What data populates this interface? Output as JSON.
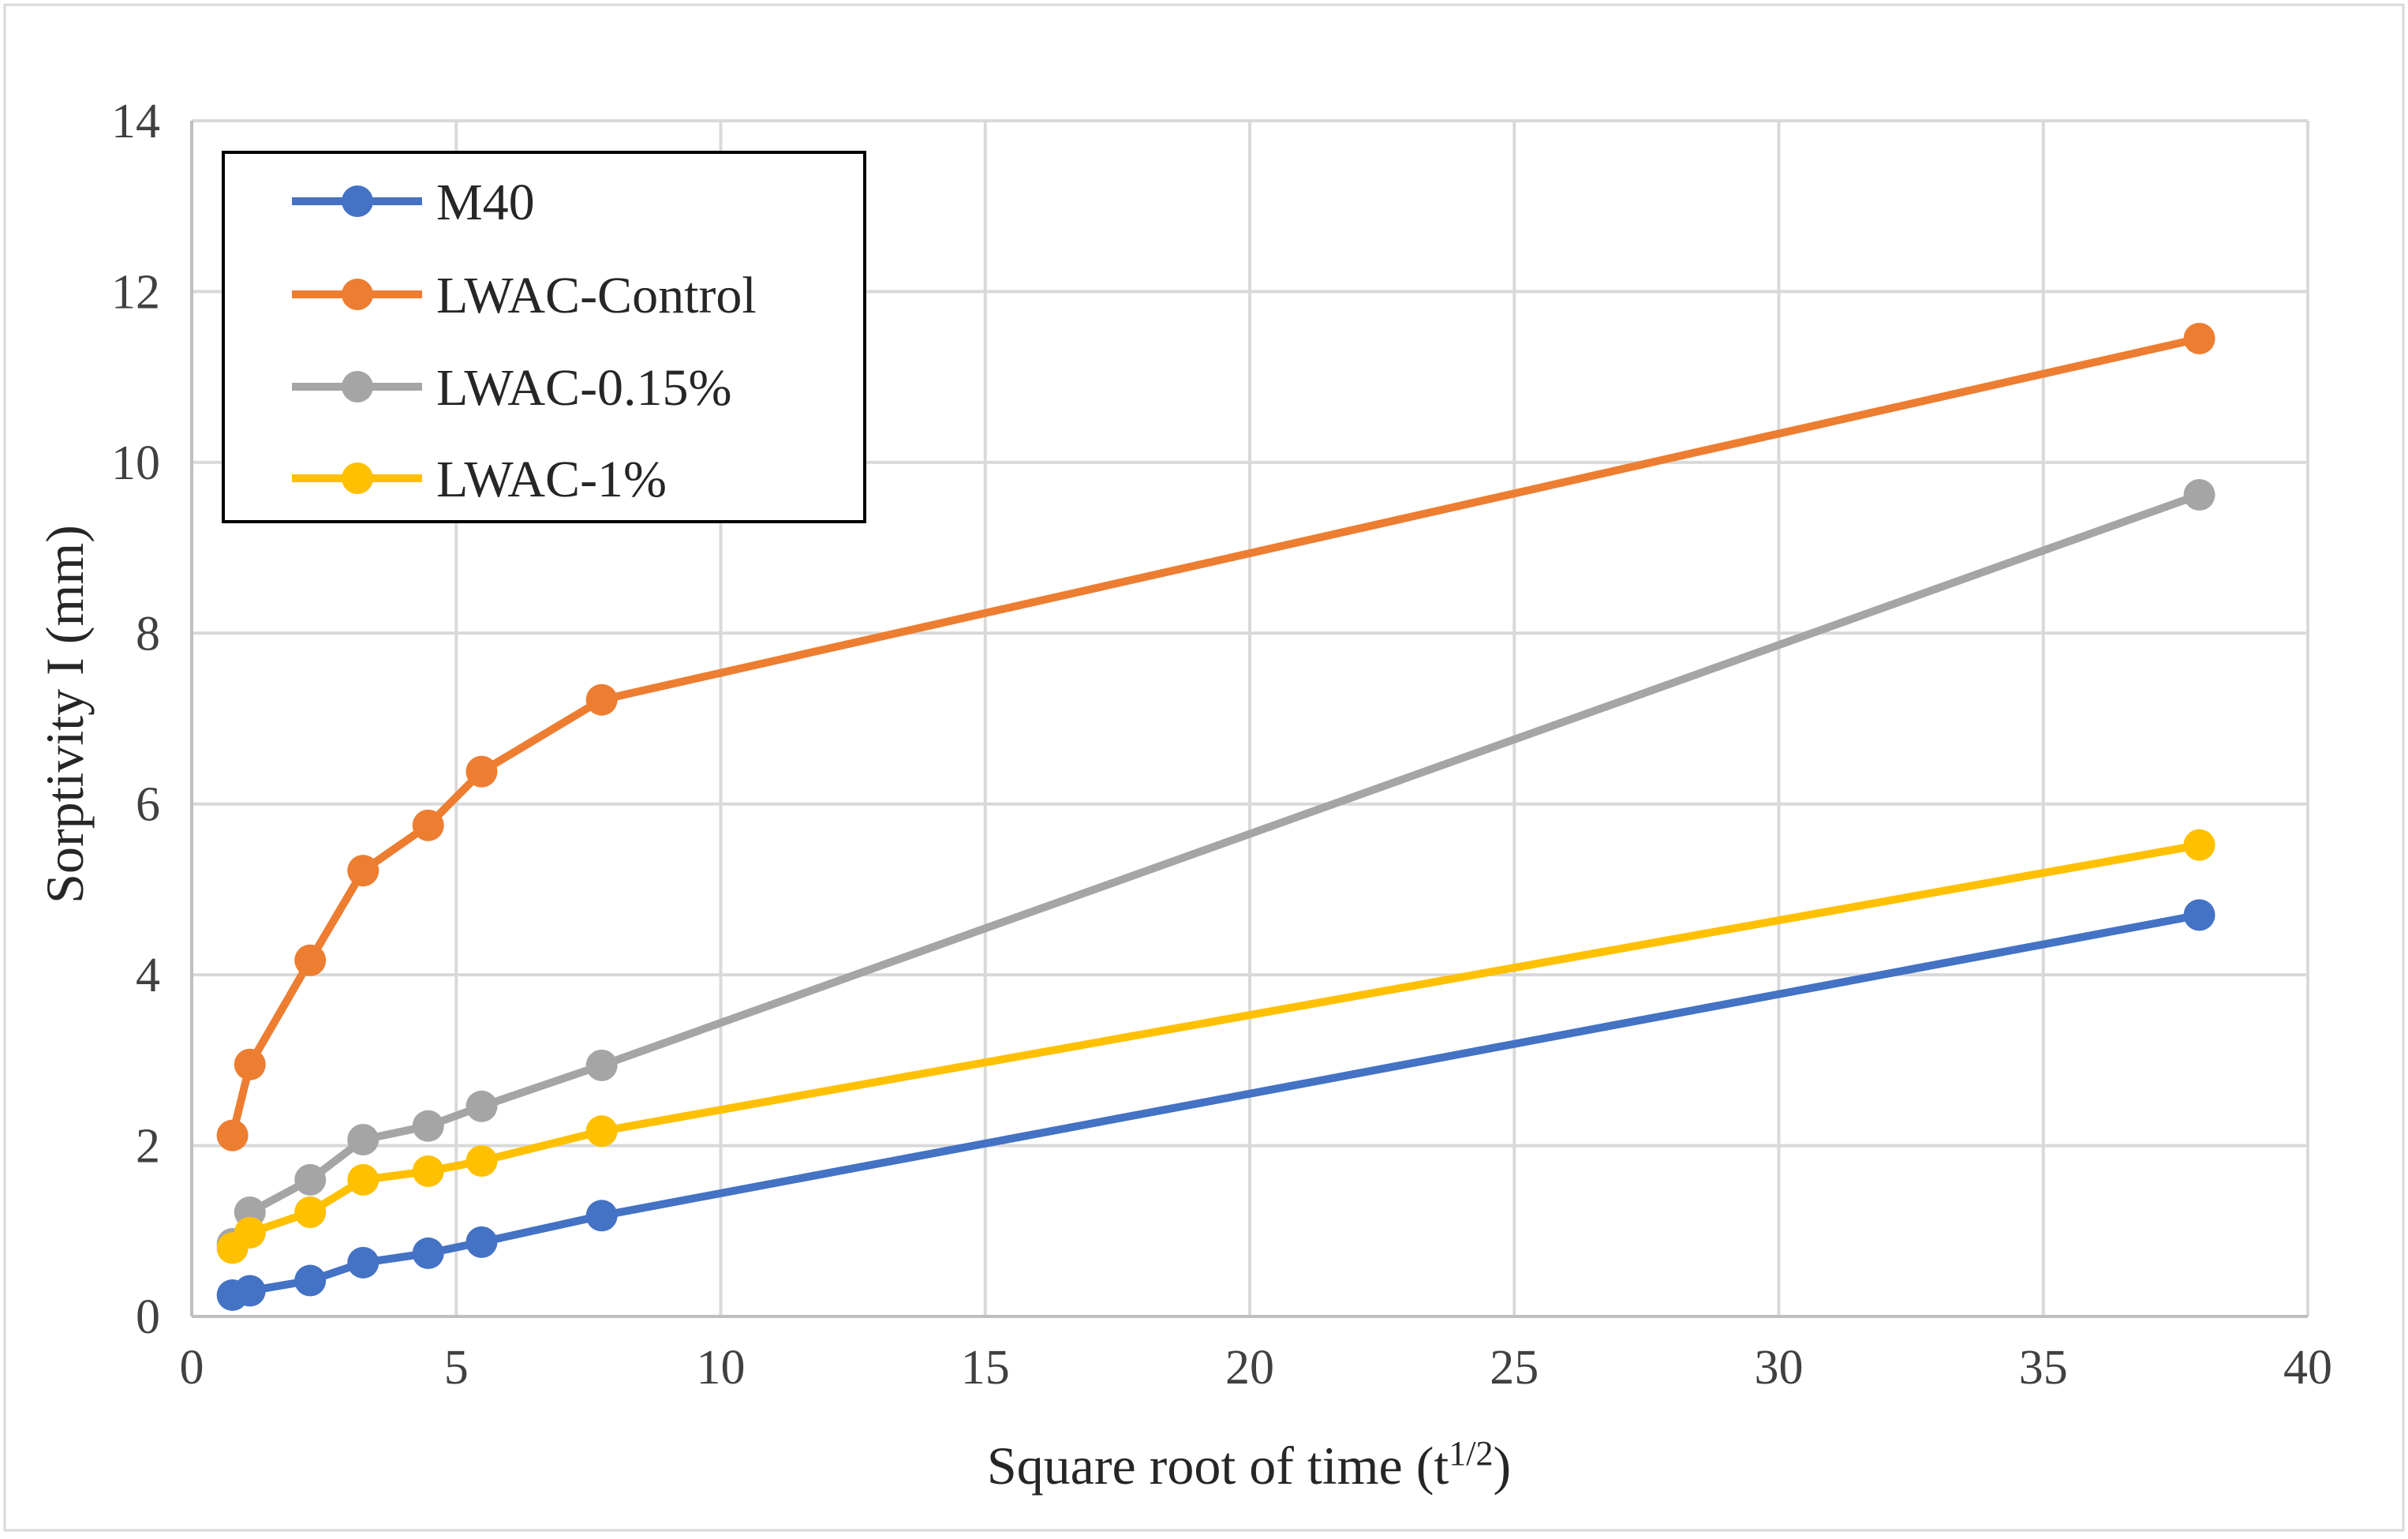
{
  "chart_data": {
    "type": "line",
    "title": "",
    "xlabel": "Square root of time (t",
    "xlabel_sup": "1/2",
    "xlabel_close": ")",
    "ylabel": "Sorptivity I (mm)",
    "xlim": [
      0,
      40
    ],
    "ylim": [
      0,
      14
    ],
    "x_ticks": [
      "0",
      "5",
      "10",
      "15",
      "20",
      "25",
      "30",
      "35",
      "40"
    ],
    "y_ticks": [
      "0",
      "2",
      "4",
      "6",
      "8",
      "10",
      "12",
      "14"
    ],
    "grid": true,
    "legend_position": "top-left",
    "x": [
      0.77,
      1.1,
      2.24,
      3.24,
      4.47,
      5.48,
      7.75,
      37.95
    ],
    "series": [
      {
        "name": "M40",
        "color": "#4472C4",
        "values": [
          0.25,
          0.3,
          0.42,
          0.63,
          0.74,
          0.87,
          1.18,
          4.7
        ]
      },
      {
        "name": "LWAC-Control",
        "color": "#ED7D31",
        "values": [
          2.12,
          2.95,
          4.17,
          5.22,
          5.75,
          6.38,
          7.22,
          11.45
        ]
      },
      {
        "name": "LWAC-0.15%",
        "color": "#A5A5A5",
        "values": [
          0.85,
          1.22,
          1.6,
          2.07,
          2.23,
          2.46,
          2.94,
          9.62
        ]
      },
      {
        "name": "LWAC-1%",
        "color": "#FFC000",
        "values": [
          0.8,
          0.98,
          1.22,
          1.6,
          1.7,
          1.82,
          2.17,
          5.52
        ]
      }
    ]
  }
}
